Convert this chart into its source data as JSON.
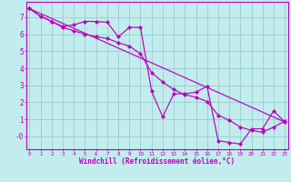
{
  "bg_color": "#c2eced",
  "line_color": "#bb00bb",
  "grid_color": "#99cccc",
  "xlabel": "Windchill (Refroidissement éolien,°C)",
  "x_data": [
    0,
    1,
    2,
    3,
    4,
    5,
    6,
    7,
    8,
    9,
    10,
    11,
    12,
    13,
    14,
    15,
    16,
    17,
    18,
    19,
    20,
    21,
    22,
    23
  ],
  "line1_y": [
    7.5,
    7.05,
    6.75,
    6.45,
    6.55,
    6.75,
    6.75,
    6.7,
    5.85,
    6.4,
    6.4,
    2.65,
    1.15,
    2.5,
    2.5,
    2.6,
    2.95,
    -0.25,
    -0.35,
    -0.45,
    0.45,
    0.45,
    1.5,
    0.85
  ],
  "line2_y": [
    7.5,
    7.05,
    6.75,
    6.4,
    6.2,
    6.0,
    5.85,
    5.75,
    5.5,
    5.3,
    4.85,
    3.75,
    3.2,
    2.75,
    2.45,
    2.3,
    2.05,
    1.25,
    0.95,
    0.55,
    0.35,
    0.25,
    0.55,
    0.9
  ],
  "line3_x": [
    0,
    23
  ],
  "line3_y": [
    7.5,
    0.85
  ],
  "xlim": [
    -0.3,
    23.3
  ],
  "ylim": [
    -0.75,
    7.9
  ],
  "ytick_vals": [
    0,
    1,
    2,
    3,
    4,
    5,
    6,
    7
  ],
  "ytick_labels": [
    "-0",
    "1",
    "2",
    "3",
    "4",
    "5",
    "6",
    "7"
  ],
  "xtick_vals": [
    0,
    1,
    2,
    3,
    4,
    5,
    6,
    7,
    8,
    9,
    10,
    11,
    12,
    13,
    14,
    15,
    16,
    17,
    18,
    19,
    20,
    21,
    22,
    23
  ]
}
